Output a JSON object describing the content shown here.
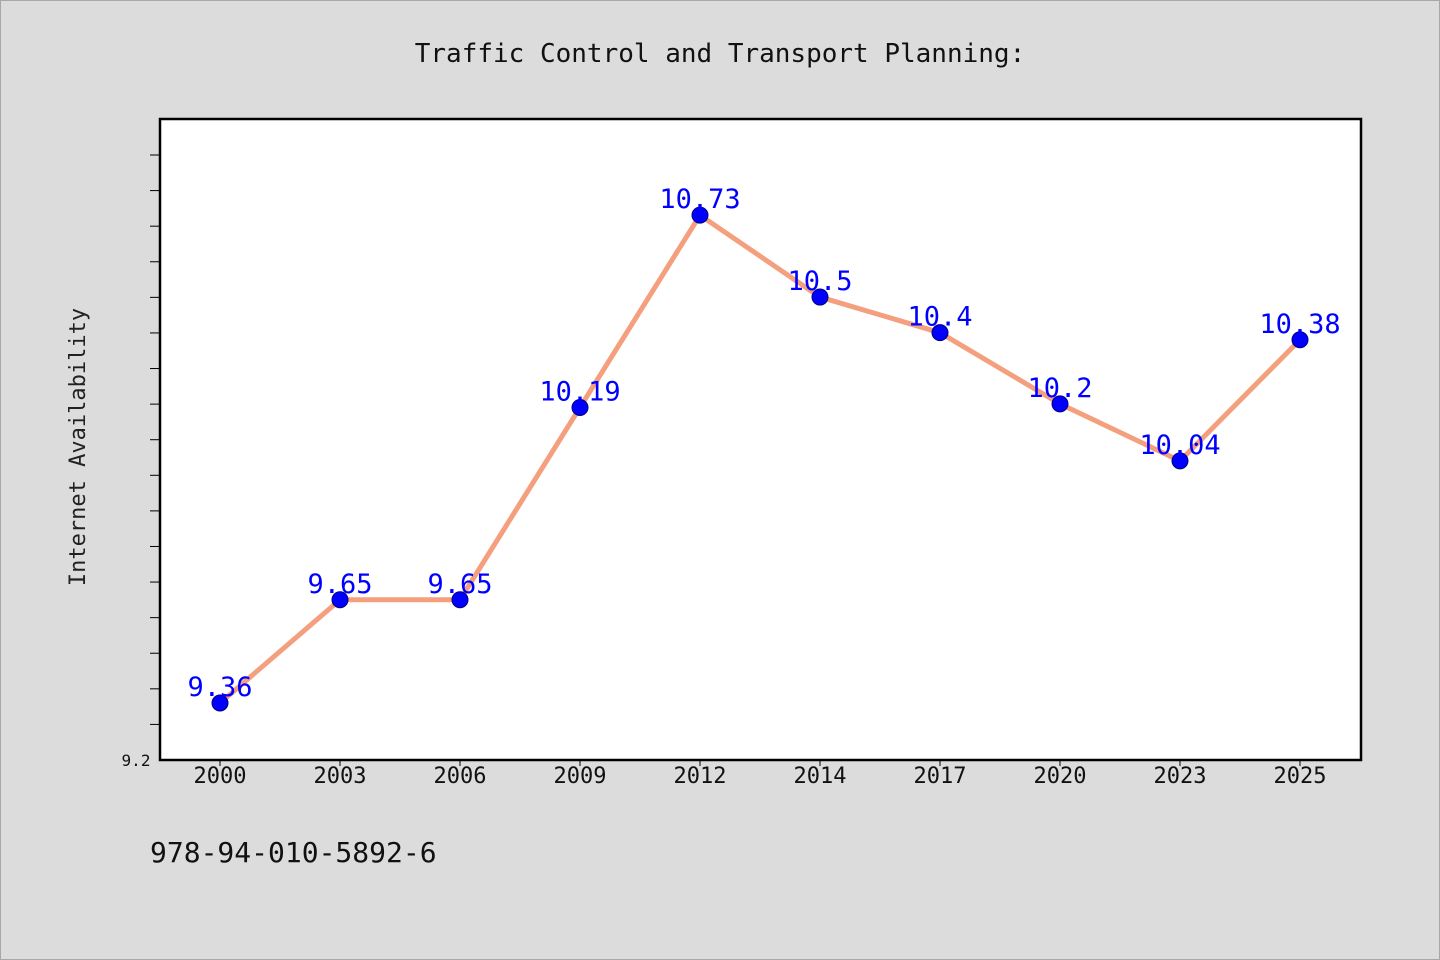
{
  "chart_data": {
    "type": "line",
    "title": "Traffic Control and Transport Planning:",
    "xlabel": "",
    "ylabel": "Internet Availability",
    "categories": [
      "2000",
      "2003",
      "2006",
      "2009",
      "2012",
      "2014",
      "2017",
      "2020",
      "2023",
      "2025"
    ],
    "series": [
      {
        "values": [
          9.36,
          9.65,
          9.65,
          10.19,
          10.73,
          10.5,
          10.4,
          10.2,
          10.04,
          10.38
        ],
        "labels": [
          "9.36",
          "9.65",
          "9.65",
          "10.19",
          "10.73",
          "10.5",
          "10.4",
          "10.2",
          "10.04",
          "10.38"
        ],
        "line_color": "#f4a07f",
        "marker_color": "#0000ff",
        "label_color": "#0000ff"
      }
    ],
    "ylim": [
      9.2,
      11.0
    ],
    "ytick_labels": [
      "9.2"
    ],
    "grid": false,
    "legend": "none",
    "background": "#ffffff",
    "page_background": "#dcdcdc"
  },
  "footer_text": "978-94-010-5892-6"
}
